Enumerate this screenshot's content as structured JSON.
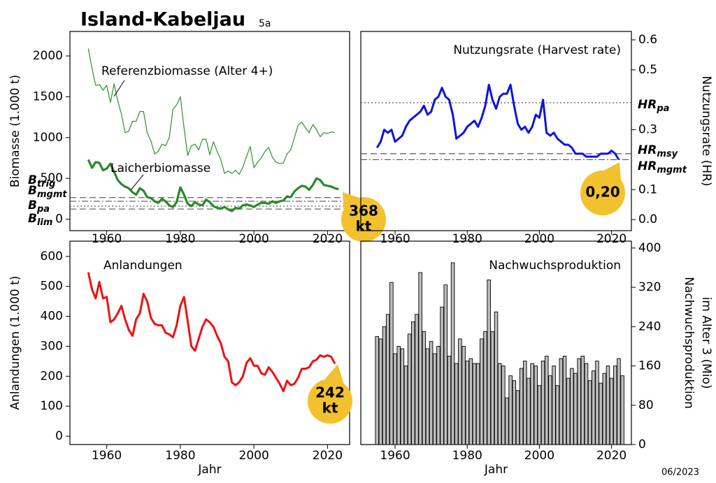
{
  "header": {
    "title": "Island-Kabeljau",
    "subtitle": "5a",
    "date": "06/2023"
  },
  "chart_data": [
    {
      "type": "line",
      "ylabel": "Biomasse (1.000 t)",
      "x": [
        1955,
        1956,
        1957,
        1958,
        1959,
        1960,
        1961,
        1962,
        1963,
        1964,
        1965,
        1966,
        1967,
        1968,
        1969,
        1970,
        1971,
        1972,
        1973,
        1974,
        1975,
        1976,
        1977,
        1978,
        1979,
        1980,
        1981,
        1982,
        1983,
        1984,
        1985,
        1986,
        1987,
        1988,
        1989,
        1990,
        1991,
        1992,
        1993,
        1994,
        1995,
        1996,
        1997,
        1998,
        1999,
        2000,
        2001,
        2002,
        2003,
        2004,
        2005,
        2006,
        2007,
        2008,
        2009,
        2010,
        2011,
        2012,
        2013,
        2014,
        2015,
        2016,
        2017,
        2018,
        2019,
        2020,
        2021,
        2022,
        2023
      ],
      "series": [
        {
          "name": "Referenzbiomasse (Alter 4+)",
          "color": "#3a9a3a",
          "values": [
            2090,
            1850,
            1640,
            1650,
            1580,
            1640,
            1430,
            1660,
            1450,
            1290,
            1060,
            1080,
            1200,
            1200,
            1320,
            1320,
            1060,
            960,
            800,
            830,
            920,
            900,
            1000,
            1350,
            1400,
            1500,
            1120,
            780,
            900,
            920,
            850,
            980,
            980,
            790,
            950,
            830,
            730,
            560,
            590,
            560,
            600,
            550,
            640,
            770,
            890,
            630,
            700,
            750,
            830,
            880,
            760,
            700,
            680,
            690,
            800,
            850,
            1000,
            1150,
            1190,
            1120,
            1060,
            1160,
            1100,
            1010,
            1060,
            1050,
            1070,
            1060,
            null
          ]
        },
        {
          "name": "Laicherbiomasse",
          "color": "#2a8a2a",
          "values": [
            730,
            630,
            700,
            690,
            600,
            620,
            680,
            580,
            480,
            430,
            400,
            380,
            330,
            300,
            380,
            350,
            270,
            260,
            220,
            200,
            250,
            220,
            170,
            150,
            210,
            390,
            300,
            190,
            160,
            210,
            180,
            170,
            240,
            210,
            160,
            140,
            130,
            150,
            120,
            100,
            140,
            130,
            170,
            180,
            170,
            150,
            180,
            200,
            200,
            190,
            220,
            200,
            220,
            230,
            280,
            270,
            340,
            380,
            410,
            400,
            360,
            420,
            500,
            480,
            420,
            410,
            400,
            380,
            368
          ]
        }
      ],
      "reference_lines": [
        {
          "label": "B",
          "sub": "trig",
          "value": 265,
          "style": "dashed"
        },
        {
          "label": "B",
          "sub": "mgmt",
          "value": 220,
          "style": "dashdot"
        },
        {
          "label": "B",
          "sub": "pa",
          "value": 160,
          "style": "dotted"
        },
        {
          "label": "B",
          "sub": "lim",
          "value": 125,
          "style": "dashed"
        }
      ],
      "badge": [
        "368",
        "kt"
      ],
      "xlim": [
        1950,
        2026
      ],
      "xticks": [
        1960,
        1980,
        2000,
        2020
      ],
      "ylim": [
        -140,
        2300
      ],
      "yticks": [
        0,
        500,
        1000,
        1500,
        2000
      ],
      "yaxis": "left"
    },
    {
      "type": "line",
      "title": "Nutzungsrate (Harvest rate)",
      "ylabel": "Nutzungsrate (HR)",
      "x": [
        1955,
        1956,
        1957,
        1958,
        1959,
        1960,
        1961,
        1962,
        1963,
        1964,
        1965,
        1966,
        1967,
        1968,
        1969,
        1970,
        1971,
        1972,
        1973,
        1974,
        1975,
        1976,
        1977,
        1978,
        1979,
        1980,
        1981,
        1982,
        1983,
        1984,
        1985,
        1986,
        1987,
        1988,
        1989,
        1990,
        1991,
        1992,
        1993,
        1994,
        1995,
        1996,
        1997,
        1998,
        1999,
        2000,
        2001,
        2002,
        2003,
        2004,
        2005,
        2006,
        2007,
        2008,
        2009,
        2010,
        2011,
        2012,
        2013,
        2014,
        2015,
        2016,
        2017,
        2018,
        2019,
        2020,
        2021,
        2022
      ],
      "series": [
        {
          "color": "#0a14e0",
          "values": [
            0.24,
            0.26,
            0.3,
            0.29,
            0.3,
            0.26,
            0.27,
            0.28,
            0.31,
            0.33,
            0.34,
            0.35,
            0.36,
            0.38,
            0.35,
            0.36,
            0.4,
            0.41,
            0.44,
            0.41,
            0.4,
            0.35,
            0.27,
            0.28,
            0.29,
            0.31,
            0.32,
            0.33,
            0.31,
            0.34,
            0.38,
            0.45,
            0.4,
            0.37,
            0.41,
            0.42,
            0.42,
            0.45,
            0.38,
            0.32,
            0.3,
            0.31,
            0.29,
            0.31,
            0.35,
            0.34,
            0.4,
            0.29,
            0.28,
            0.29,
            0.27,
            0.26,
            0.25,
            0.25,
            0.24,
            0.22,
            0.22,
            0.22,
            0.21,
            0.21,
            0.21,
            0.21,
            0.22,
            0.22,
            0.22,
            0.23,
            0.22,
            0.2
          ]
        }
      ],
      "reference_lines": [
        {
          "label": "HR",
          "sub": "pa",
          "value": 0.39,
          "style": "dotted"
        },
        {
          "label": "HR",
          "sub": "msy",
          "value": 0.22,
          "style": "dashed"
        },
        {
          "label": "HR",
          "sub": "mgmt",
          "value": 0.2,
          "style": "dashdot"
        }
      ],
      "badge": [
        "0,20"
      ],
      "xlim": [
        1950.5,
        2025.5
      ],
      "xticks": [
        1960,
        1980,
        2000,
        2020
      ],
      "ylim": [
        -0.037,
        0.628
      ],
      "yticks": [
        {
          "value": 0,
          "label": "0.0"
        },
        0.1,
        0.3,
        0.5,
        0.6
      ],
      "yaxis": "right"
    },
    {
      "type": "line",
      "title": "Anlandungen",
      "xlabel": "Jahr",
      "ylabel": "Anlandungen (1.000 t)",
      "x": [
        1955,
        1956,
        1957,
        1958,
        1959,
        1960,
        1961,
        1962,
        1963,
        1964,
        1965,
        1966,
        1967,
        1968,
        1969,
        1970,
        1971,
        1972,
        1973,
        1974,
        1975,
        1976,
        1977,
        1978,
        1979,
        1980,
        1981,
        1982,
        1983,
        1984,
        1985,
        1986,
        1987,
        1988,
        1989,
        1990,
        1991,
        1992,
        1993,
        1994,
        1995,
        1996,
        1997,
        1998,
        1999,
        2000,
        2001,
        2002,
        2003,
        2004,
        2005,
        2006,
        2007,
        2008,
        2009,
        2010,
        2011,
        2012,
        2013,
        2014,
        2015,
        2016,
        2017,
        2018,
        2019,
        2020,
        2021,
        2022
      ],
      "series": [
        {
          "color": "#ee1111",
          "values": [
            547,
            490,
            460,
            515,
            460,
            465,
            380,
            390,
            410,
            435,
            390,
            355,
            335,
            390,
            410,
            475,
            450,
            395,
            375,
            370,
            370,
            345,
            340,
            330,
            370,
            435,
            465,
            385,
            300,
            285,
            325,
            365,
            390,
            380,
            365,
            335,
            310,
            265,
            250,
            180,
            170,
            180,
            200,
            245,
            260,
            235,
            235,
            210,
            205,
            230,
            215,
            195,
            175,
            150,
            185,
            170,
            175,
            195,
            225,
            225,
            230,
            250,
            255,
            270,
            265,
            270,
            265,
            242
          ]
        }
      ],
      "badge": [
        "242",
        "kt"
      ],
      "xlim": [
        1950,
        2026
      ],
      "xticks": [
        1960,
        1980,
        2000,
        2020
      ],
      "ylim": [
        -28,
        651
      ],
      "yticks": [
        0,
        100,
        200,
        300,
        400,
        500,
        600
      ],
      "yaxis": "left"
    },
    {
      "type": "bar",
      "title": "Nachwuchsproduktion",
      "xlabel": "Jahr",
      "ylabel": [
        "Nachwuchsproduktion",
        "im Alter 3 (Mio)"
      ],
      "x": [
        1955,
        1956,
        1957,
        1958,
        1959,
        1960,
        1961,
        1962,
        1963,
        1964,
        1965,
        1966,
        1967,
        1968,
        1969,
        1970,
        1971,
        1972,
        1973,
        1974,
        1975,
        1976,
        1977,
        1978,
        1979,
        1980,
        1981,
        1982,
        1983,
        1984,
        1985,
        1986,
        1987,
        1988,
        1989,
        1990,
        1991,
        1992,
        1993,
        1994,
        1995,
        1996,
        1997,
        1998,
        1999,
        2000,
        2001,
        2002,
        2003,
        2004,
        2005,
        2006,
        2007,
        2008,
        2009,
        2010,
        2011,
        2012,
        2013,
        2014,
        2015,
        2016,
        2017,
        2018,
        2019,
        2020,
        2021,
        2022,
        2023
      ],
      "series": [
        {
          "color": "#bdbdbd",
          "values": [
            220,
            215,
            240,
            265,
            330,
            185,
            200,
            195,
            160,
            225,
            250,
            265,
            350,
            230,
            195,
            210,
            185,
            200,
            280,
            325,
            180,
            370,
            165,
            215,
            200,
            170,
            175,
            165,
            165,
            215,
            230,
            335,
            230,
            270,
            165,
            160,
            95,
            140,
            130,
            110,
            155,
            170,
            135,
            165,
            160,
            120,
            170,
            180,
            140,
            160,
            120,
            175,
            180,
            135,
            155,
            145,
            175,
            180,
            165,
            130,
            150,
            170,
            125,
            145,
            160,
            135,
            160,
            175,
            140
          ]
        }
      ],
      "xlim": [
        1950.5,
        2025.5
      ],
      "xticks": [
        1960,
        1980,
        2000,
        2020
      ],
      "ylim": [
        0,
        414
      ],
      "yticks": [
        0,
        80,
        160,
        240,
        320,
        400
      ],
      "yaxis": "right"
    }
  ]
}
